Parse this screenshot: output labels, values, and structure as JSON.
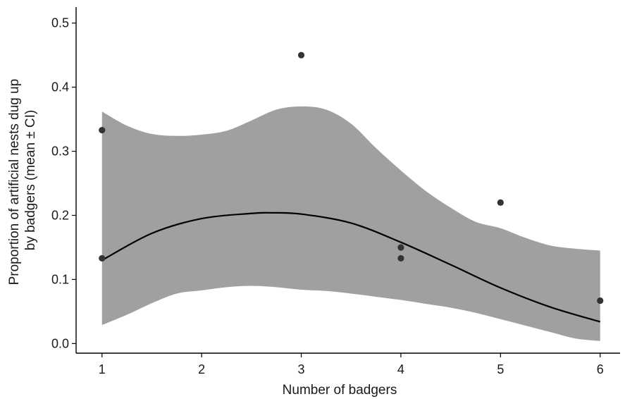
{
  "chart_data": {
    "type": "scatter",
    "title": "",
    "xlabel": "Number of badgers",
    "ylabel_lines": [
      "Proportion of artificial nests dug up",
      "by badgers (mean ± CI)"
    ],
    "xlim": [
      0.74,
      6.2
    ],
    "ylim": [
      -0.015,
      0.525
    ],
    "x_ticks": [
      1,
      2,
      3,
      4,
      5,
      6
    ],
    "y_ticks": [
      0.0,
      0.1,
      0.2,
      0.3,
      0.4,
      0.5
    ],
    "x_tick_labels": [
      "1",
      "2",
      "3",
      "4",
      "5",
      "6"
    ],
    "y_tick_labels": [
      "0.0",
      "0.1",
      "0.2",
      "0.3",
      "0.4",
      "0.5"
    ],
    "grid": false,
    "colors": {
      "points": "#333333",
      "band": "#a0a0a0",
      "line": "#000000",
      "axis": "#000000"
    },
    "points": [
      {
        "x": 1,
        "y": 0.333
      },
      {
        "x": 1,
        "y": 0.133
      },
      {
        "x": 3,
        "y": 0.45
      },
      {
        "x": 4,
        "y": 0.15
      },
      {
        "x": 4,
        "y": 0.133
      },
      {
        "x": 5,
        "y": 0.22
      },
      {
        "x": 6,
        "y": 0.067
      }
    ],
    "series": [
      {
        "type": "line",
        "x": [
          1,
          1.5,
          2,
          2.5,
          2.7,
          3,
          3.5,
          4,
          4.5,
          5,
          5.5,
          6
        ],
        "y": [
          0.13,
          0.172,
          0.195,
          0.203,
          0.204,
          0.202,
          0.188,
          0.158,
          0.123,
          0.087,
          0.057,
          0.034
        ]
      },
      {
        "type": "confidence_band",
        "x": [
          1,
          1.25,
          1.5,
          1.75,
          2,
          2.25,
          2.5,
          2.75,
          3,
          3.25,
          3.5,
          3.75,
          4,
          4.25,
          4.5,
          4.75,
          5,
          5.25,
          5.5,
          5.75,
          6
        ],
        "upper": [
          0.362,
          0.34,
          0.327,
          0.324,
          0.326,
          0.332,
          0.348,
          0.365,
          0.37,
          0.365,
          0.343,
          0.305,
          0.27,
          0.238,
          0.212,
          0.19,
          0.18,
          0.165,
          0.153,
          0.148,
          0.145
        ],
        "lower": [
          0.029,
          0.045,
          0.063,
          0.078,
          0.083,
          0.088,
          0.09,
          0.088,
          0.084,
          0.082,
          0.078,
          0.073,
          0.068,
          0.062,
          0.056,
          0.048,
          0.038,
          0.028,
          0.018,
          0.008,
          0.004
        ]
      }
    ]
  }
}
